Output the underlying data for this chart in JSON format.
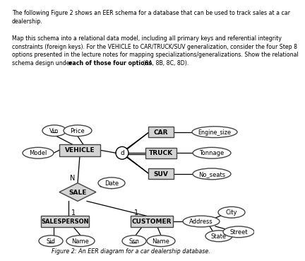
{
  "text_header": [
    "The following Figure 2 shows an EER schema for a database that can be used to track sales at a car",
    "dealership.",
    "",
    "Map this schema into a relational data model, including all primary keys and referential integrity",
    "constraints (foreign keys). For the VEHICLE to CAR/TRUCK/SUV generalization, consider the four Step 8",
    "options presented in the lecture notes for mapping specializations/generalizations. Show the relational",
    "schema design under each of those four options (8A, 8B, 8C, 8D)."
  ],
  "bold_phrase": "each of those four options",
  "figure_caption": "Figure 2: An EER diagram for a car dealership database.",
  "bg_color": "#ffffff",
  "entity_bg": "#d4d4d4",
  "entity_border": "#444444",
  "ellipse_bg": "#ffffff",
  "ellipse_border": "#444444",
  "diamond_bg": "#d4d4d4",
  "diamond_border": "#444444"
}
